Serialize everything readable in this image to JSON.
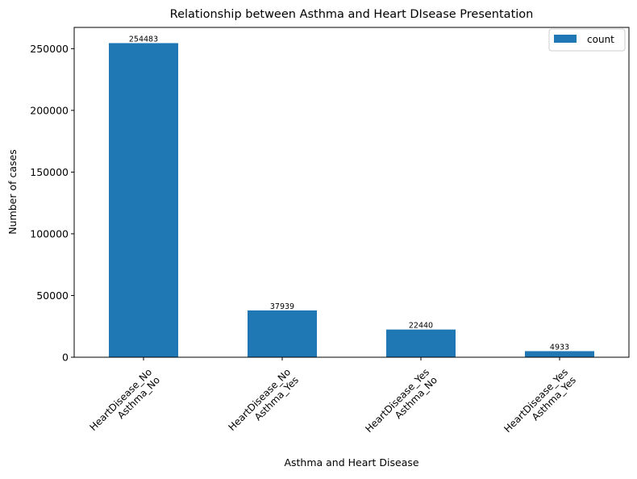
{
  "chart_data": {
    "type": "bar",
    "title": "Relationship between Asthma and Heart DIsease Presentation",
    "xlabel": "Asthma and Heart Disease",
    "ylabel": "Number of cases",
    "categories": [
      [
        "HeartDisease_No",
        "Asthma_No"
      ],
      [
        "HeartDisease_No",
        "Asthma_Yes"
      ],
      [
        "HeartDisease_Yes",
        "Asthma_No"
      ],
      [
        "HeartDisease_Yes",
        "Asthma_Yes"
      ]
    ],
    "series": [
      {
        "name": "count",
        "values": [
          254483,
          37939,
          22440,
          4933
        ],
        "color": "#1f77b4"
      }
    ],
    "data_labels": [
      "254483",
      "37939",
      "22440",
      "4933"
    ],
    "ylim": [
      0,
      267207
    ],
    "yticks": [
      0,
      50000,
      100000,
      150000,
      200000,
      250000
    ],
    "ytick_labels": [
      "0",
      "50000",
      "100000",
      "150000",
      "200000",
      "250000"
    ],
    "legend": {
      "placement": "top-right",
      "entries": [
        "count"
      ]
    },
    "grid": false
  }
}
